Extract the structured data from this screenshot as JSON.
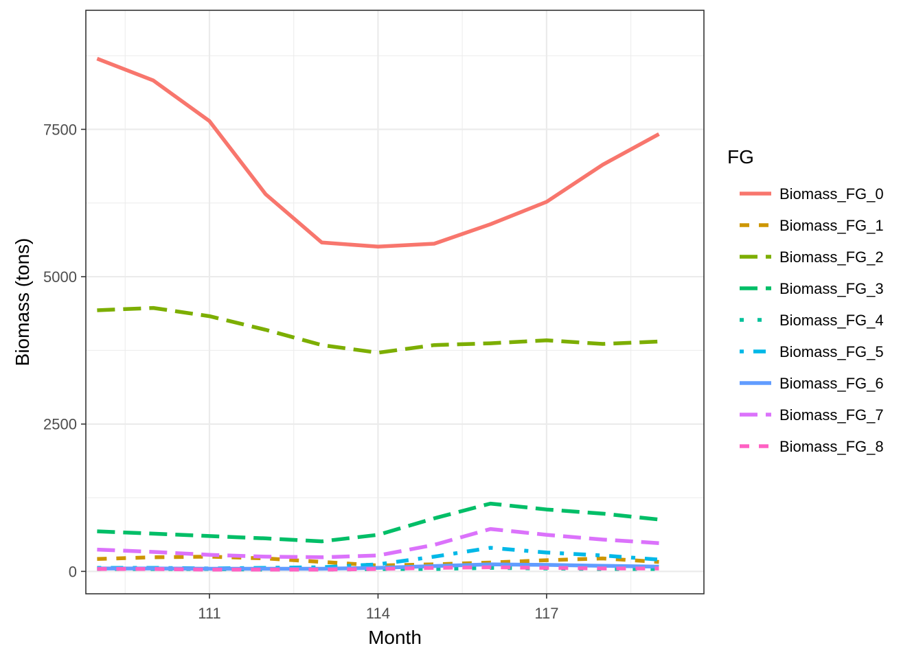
{
  "chart_data": {
    "type": "line",
    "xlabel": "Month",
    "ylabel": "Biomass (tons)",
    "xlim": [
      108.8,
      119.8
    ],
    "ylim": [
      -380,
      9520
    ],
    "x_ticks": [
      111,
      114,
      117
    ],
    "y_ticks": [
      0,
      2500,
      5000,
      7500
    ],
    "grid": true,
    "legend": {
      "title": "FG",
      "position": "right"
    },
    "x": [
      109,
      110,
      111,
      112,
      113,
      114,
      115,
      116,
      117,
      118,
      119
    ],
    "series": [
      {
        "name": "Biomass_FG_0",
        "color": "#F8766D",
        "dash": "solid",
        "values": [
          8700,
          8330,
          7640,
          6400,
          5580,
          5510,
          5560,
          5890,
          6270,
          6900,
          7420
        ]
      },
      {
        "name": "Biomass_FG_1",
        "color": "#CD9600",
        "dash": "dash",
        "values": [
          210,
          240,
          250,
          220,
          160,
          100,
          120,
          150,
          190,
          220,
          160
        ]
      },
      {
        "name": "Biomass_FG_2",
        "color": "#7CAE00",
        "dash": "longdash",
        "values": [
          4430,
          4470,
          4330,
          4100,
          3840,
          3710,
          3840,
          3870,
          3920,
          3860,
          3900
        ]
      },
      {
        "name": "Biomass_FG_3",
        "color": "#00BE67",
        "dash": "longdash",
        "values": [
          680,
          640,
          600,
          560,
          510,
          620,
          900,
          1150,
          1050,
          980,
          880
        ]
      },
      {
        "name": "Biomass_FG_4",
        "color": "#00C19A",
        "dash": "dot",
        "values": [
          40,
          40,
          40,
          30,
          30,
          40,
          40,
          60,
          50,
          40,
          40
        ]
      },
      {
        "name": "Biomass_FG_5",
        "color": "#00B8E7",
        "dash": "dotdash",
        "values": [
          60,
          60,
          50,
          60,
          70,
          120,
          250,
          400,
          320,
          270,
          200
        ]
      },
      {
        "name": "Biomass_FG_6",
        "color": "#619CFF",
        "dash": "solid",
        "values": [
          50,
          50,
          45,
          45,
          45,
          60,
          90,
          120,
          110,
          95,
          80
        ]
      },
      {
        "name": "Biomass_FG_7",
        "color": "#DB72FB",
        "dash": "longdash",
        "values": [
          370,
          330,
          280,
          250,
          240,
          270,
          450,
          720,
          620,
          540,
          480
        ]
      },
      {
        "name": "Biomass_FG_8",
        "color": "#FF61C3",
        "dash": "dash",
        "values": [
          40,
          40,
          30,
          30,
          30,
          40,
          60,
          70,
          60,
          50,
          50
        ]
      }
    ]
  }
}
